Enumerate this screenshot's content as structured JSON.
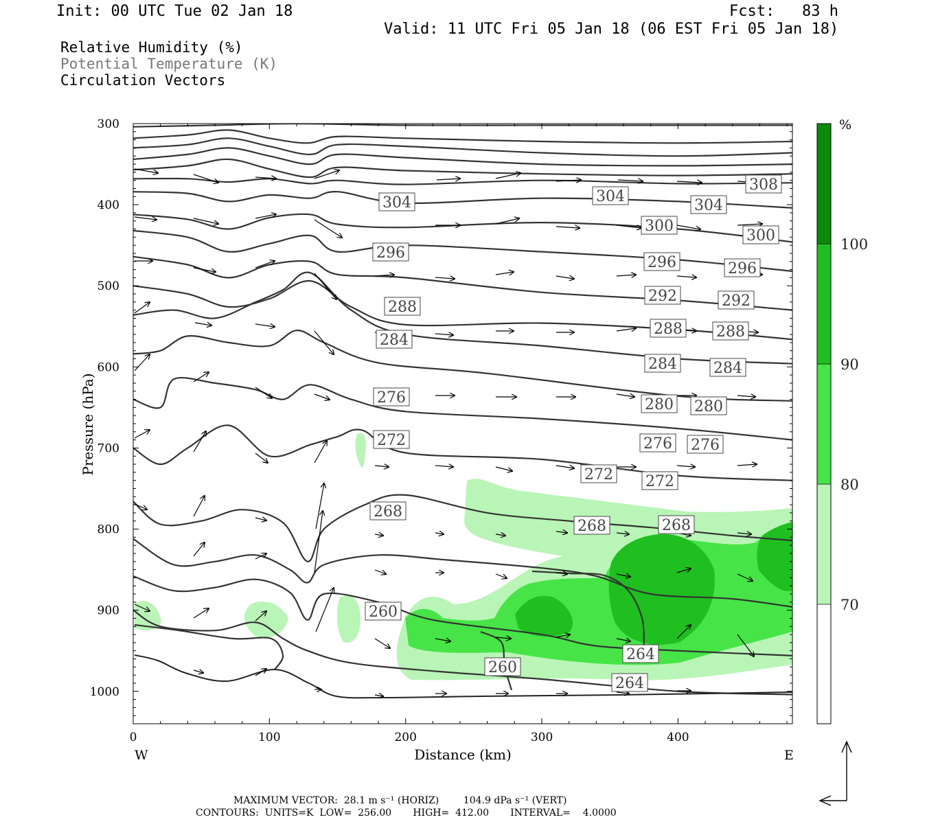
{
  "header": {
    "init": "Init: 00 UTC Tue 02 Jan 18",
    "fcst": "Fcst:   83 h",
    "valid": "Valid: 11 UTC Fri 05 Jan 18 (06 EST Fri 05 Jan 18)"
  },
  "legend": {
    "line1": "Relative Humidity (%)",
    "line2": "Potential Temperature (K)",
    "line3": "Circulation Vectors"
  },
  "colorbar": {
    "unit": "%",
    "ticks": [
      "70",
      "80",
      "90",
      "100"
    ],
    "colors": [
      "#ffffff",
      "#b9f5b6",
      "#46e446",
      "#1fbf1f",
      "#0a8c0a"
    ]
  },
  "footer": {
    "line1": "MAXIMUM VECTOR:  28.1 m s⁻¹ (HORIZ)        104.9 dPa s⁻¹ (VERT)",
    "line2": "CONTOURS:  UNITS=K  LOW=  256.00       HIGH=  412.00       INTERVAL=    4.0000"
  },
  "chart_data": {
    "type": "cross-section",
    "xlabel": "Distance (km)",
    "ylabel": "Pressure (hPa)",
    "x_ticks": [
      "0",
      "100",
      "200",
      "300",
      "400"
    ],
    "y_ticks": [
      "300",
      "400",
      "500",
      "600",
      "700",
      "800",
      "900",
      "1000"
    ],
    "xlim": [
      0,
      484
    ],
    "ylim": [
      1040,
      300
    ],
    "x_end_labels": {
      "left": "W",
      "right": "E"
    },
    "isentropes": [
      {
        "value": 308,
        "points": [
          [
            0,
            304
          ],
          [
            60,
            302
          ],
          [
            120,
            300
          ],
          [
            200,
            302
          ],
          [
            300,
            302
          ],
          [
            400,
            302
          ],
          [
            484,
            302
          ]
        ]
      },
      {
        "value": 308,
        "points": [
          [
            0,
            318
          ],
          [
            40,
            314
          ],
          [
            70,
            308
          ],
          [
            100,
            318
          ],
          [
            128,
            324
          ],
          [
            150,
            316
          ],
          [
            200,
            318
          ],
          [
            300,
            322
          ],
          [
            400,
            324
          ],
          [
            484,
            322
          ]
        ]
      },
      {
        "value": 308,
        "points": [
          [
            0,
            330
          ],
          [
            40,
            326
          ],
          [
            70,
            318
          ],
          [
            100,
            328
          ],
          [
            130,
            338
          ],
          [
            150,
            326
          ],
          [
            200,
            328
          ],
          [
            300,
            336
          ],
          [
            400,
            340
          ],
          [
            484,
            336
          ]
        ]
      },
      {
        "value": 308,
        "points": [
          [
            0,
            344
          ],
          [
            40,
            338
          ],
          [
            70,
            330
          ],
          [
            100,
            340
          ],
          [
            130,
            350
          ],
          [
            150,
            338
          ],
          [
            200,
            342
          ],
          [
            300,
            350
          ],
          [
            400,
            352
          ],
          [
            484,
            350
          ]
        ]
      },
      {
        "value": 308,
        "points": [
          [
            0,
            357
          ],
          [
            40,
            352
          ],
          [
            70,
            344
          ],
          [
            100,
            356
          ],
          [
            130,
            366
          ],
          [
            150,
            354
          ],
          [
            200,
            358
          ],
          [
            300,
            362
          ],
          [
            400,
            364
          ],
          [
            484,
            362
          ]
        ]
      },
      {
        "value": 308,
        "points": [
          [
            0,
            368
          ],
          [
            40,
            368
          ],
          [
            70,
            372
          ],
          [
            100,
            368
          ],
          [
            130,
            374
          ],
          [
            150,
            370
          ],
          [
            200,
            375
          ],
          [
            300,
            370
          ],
          [
            400,
            374
          ],
          [
            484,
            373
          ]
        ]
      },
      {
        "value": 304,
        "points": [
          [
            0,
            384
          ],
          [
            40,
            386
          ],
          [
            70,
            396
          ],
          [
            100,
            388
          ],
          [
            130,
            392
          ],
          [
            150,
            384
          ],
          [
            200,
            398
          ],
          [
            300,
            392
          ],
          [
            400,
            396
          ],
          [
            484,
            404
          ]
        ]
      },
      {
        "value": 300,
        "points": [
          [
            0,
            412
          ],
          [
            40,
            418
          ],
          [
            70,
            430
          ],
          [
            100,
            416
          ],
          [
            130,
            412
          ],
          [
            150,
            424
          ],
          [
            200,
            428
          ],
          [
            300,
            422
          ],
          [
            400,
            430
          ],
          [
            484,
            446
          ]
        ]
      },
      {
        "value": 296,
        "points": [
          [
            0,
            432
          ],
          [
            40,
            440
          ],
          [
            70,
            458
          ],
          [
            100,
            448
          ],
          [
            130,
            438
          ],
          [
            150,
            458
          ],
          [
            200,
            450
          ],
          [
            300,
            458
          ],
          [
            400,
            468
          ],
          [
            484,
            482
          ]
        ]
      },
      {
        "value": 292,
        "points": [
          [
            0,
            464
          ],
          [
            40,
            474
          ],
          [
            70,
            490
          ],
          [
            100,
            474
          ],
          [
            130,
            470
          ],
          [
            150,
            486
          ],
          [
            200,
            490
          ],
          [
            300,
            508
          ],
          [
            400,
            518
          ],
          [
            484,
            530
          ]
        ]
      },
      {
        "value": 288,
        "points": [
          [
            0,
            500
          ],
          [
            40,
            510
          ],
          [
            70,
            526
          ],
          [
            100,
            516
          ],
          [
            130,
            494
          ],
          [
            160,
            526
          ],
          [
            200,
            548
          ],
          [
            300,
            546
          ],
          [
            400,
            554
          ],
          [
            484,
            566
          ]
        ]
      },
      {
        "value": 284,
        "points": [
          [
            0,
            536
          ],
          [
            30,
            530
          ],
          [
            60,
            540
          ],
          [
            90,
            520
          ],
          [
            110,
            505
          ],
          [
            130,
            484
          ],
          [
            160,
            530
          ],
          [
            200,
            560
          ],
          [
            300,
            574
          ],
          [
            400,
            590
          ],
          [
            484,
            596
          ]
        ]
      },
      {
        "value": 280,
        "points": [
          [
            0,
            584
          ],
          [
            20,
            580
          ],
          [
            40,
            562
          ],
          [
            70,
            570
          ],
          [
            100,
            574
          ],
          [
            120,
            555
          ],
          [
            140,
            570
          ],
          [
            180,
            595
          ],
          [
            260,
            608
          ],
          [
            400,
            636
          ],
          [
            484,
            642
          ]
        ]
      },
      {
        "value": 276,
        "points": [
          [
            0,
            640
          ],
          [
            20,
            650
          ],
          [
            30,
            615
          ],
          [
            60,
            620
          ],
          [
            90,
            628
          ],
          [
            110,
            640
          ],
          [
            130,
            622
          ],
          [
            160,
            640
          ],
          [
            200,
            655
          ],
          [
            300,
            664
          ],
          [
            400,
            676
          ],
          [
            484,
            690
          ]
        ]
      },
      {
        "value": 272,
        "points": [
          [
            0,
            700
          ],
          [
            20,
            720
          ],
          [
            40,
            700
          ],
          [
            70,
            672
          ],
          [
            100,
            710
          ],
          [
            130,
            696
          ],
          [
            150,
            686
          ],
          [
            168,
            678
          ],
          [
            200,
            706
          ],
          [
            300,
            714
          ],
          [
            400,
            734
          ],
          [
            484,
            740
          ]
        ]
      },
      {
        "value": 268,
        "points": [
          [
            0,
            766
          ],
          [
            20,
            794
          ],
          [
            50,
            790
          ],
          [
            80,
            776
          ],
          [
            110,
            792
          ],
          [
            128,
            840
          ],
          [
            140,
            800
          ],
          [
            170,
            770
          ],
          [
            200,
            758
          ],
          [
            260,
            780
          ],
          [
            320,
            790
          ],
          [
            380,
            798
          ],
          [
            440,
            808
          ],
          [
            484,
            814
          ]
        ]
      },
      {
        "value": 264,
        "points": [
          [
            0,
            812
          ],
          [
            30,
            844
          ],
          [
            60,
            840
          ],
          [
            90,
            832
          ],
          [
            115,
            850
          ],
          [
            128,
            866
          ],
          [
            140,
            844
          ],
          [
            180,
            832
          ],
          [
            230,
            838
          ],
          [
            300,
            848
          ],
          [
            340,
            858
          ],
          [
            380,
            880
          ],
          [
            440,
            886
          ],
          [
            484,
            896
          ]
        ]
      },
      {
        "value": 260,
        "points": [
          [
            0,
            858
          ],
          [
            30,
            876
          ],
          [
            60,
            872
          ],
          [
            90,
            862
          ],
          [
            115,
            878
          ],
          [
            128,
            912
          ],
          [
            140,
            880
          ],
          [
            180,
            890
          ],
          [
            220,
            912
          ],
          [
            300,
            930
          ],
          [
            340,
            944
          ],
          [
            400,
            950
          ],
          [
            484,
            956
          ]
        ]
      },
      {
        "value": 256,
        "points": [
          [
            0,
            900
          ],
          [
            20,
            920
          ],
          [
            60,
            925
          ],
          [
            90,
            915
          ],
          [
            110,
            935
          ],
          [
            128,
            950
          ],
          [
            160,
            965
          ],
          [
            220,
            975
          ],
          [
            300,
            985
          ],
          [
            400,
            1000
          ],
          [
            484,
            1004
          ]
        ]
      }
    ],
    "label_boxes": [
      "304",
      "304",
      "304",
      "308",
      "300",
      "300",
      "296",
      "296",
      "296",
      "292",
      "292",
      "288",
      "288",
      "288",
      "284",
      "284",
      "284",
      "276",
      "280",
      "280",
      "272",
      "276",
      "276",
      "272",
      "272",
      "268",
      "268",
      "268",
      "260",
      "260",
      "264",
      "264"
    ],
    "rh_levels": [
      70,
      80,
      90,
      100
    ]
  }
}
